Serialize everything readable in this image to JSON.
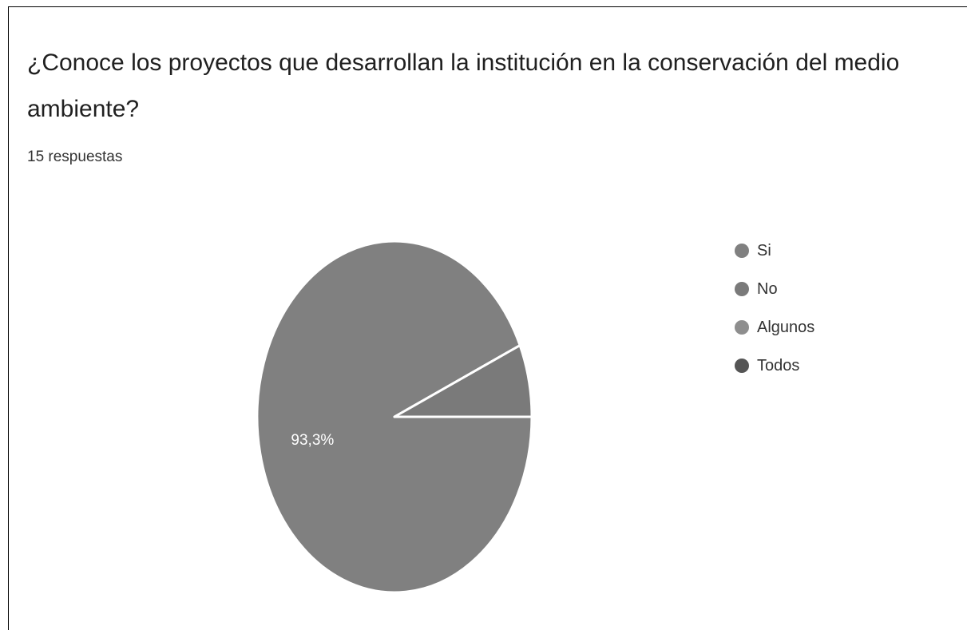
{
  "header": {
    "question": "¿Conoce los proyectos que desarrollan la institución en la conservación del medio ambiente?",
    "responses": "15 respuestas"
  },
  "chart_data": {
    "type": "pie",
    "title": "¿Conoce los proyectos que desarrollan la institución en la conservación del medio ambiente?",
    "subtitle": "15 respuestas",
    "total": 15,
    "legend_position": "right",
    "categories": [
      "Si",
      "No",
      "Algunos",
      "Todos"
    ],
    "values": [
      14,
      1,
      0,
      0
    ],
    "percent_labels": [
      "93,3%",
      "",
      "",
      ""
    ],
    "colors": [
      "#808080",
      "#7a7a7a",
      "#8e8e8e",
      "#555555"
    ]
  }
}
